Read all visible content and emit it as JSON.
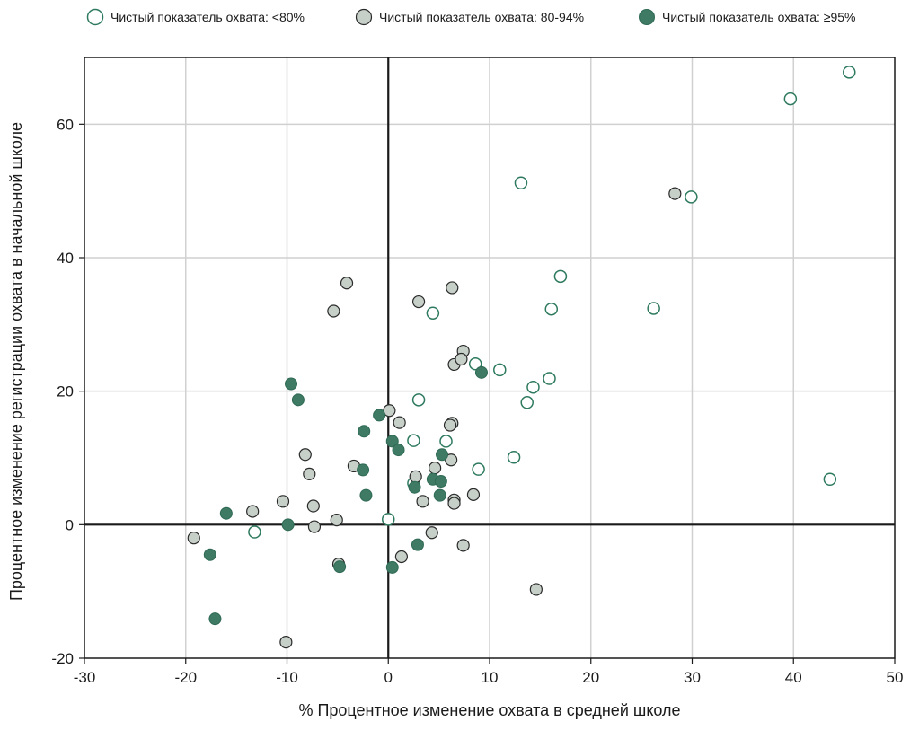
{
  "chart_data": {
    "type": "scatter",
    "title": "",
    "xlabel": "% Процентное изменение охвата в средней школе",
    "ylabel": "Процентное изменение регистрации охвата в начальной школе",
    "xlim": [
      -30,
      50
    ],
    "ylim": [
      -20,
      70
    ],
    "x_ticks": [
      -30,
      -20,
      -10,
      0,
      10,
      20,
      30,
      40,
      50
    ],
    "y_ticks": [
      -20,
      0,
      20,
      40,
      60
    ],
    "x_tick_labels": [
      "-30",
      "-20",
      "-10",
      "0",
      "10",
      "20",
      "30",
      "40",
      "50"
    ],
    "y_tick_labels": [
      "-20",
      "0",
      "20",
      "40",
      "60"
    ],
    "grid": true,
    "legend_position": "top",
    "colors": {
      "low": "#ffffff",
      "mid": "#c7cfc9",
      "high": "#3f7a64",
      "stroke_low": "#2e7a5e",
      "stroke_mid": "#2a2a2a",
      "stroke_high": "#2f6a55",
      "grid": "#d0d0d0",
      "zero_line": "#1a1a1a"
    },
    "series": [
      {
        "name": "Чистый показатель охвата: <80%",
        "marker": "open-circle",
        "points": [
          [
            45.5,
            67.8
          ],
          [
            39.7,
            63.8
          ],
          [
            13.1,
            51.2
          ],
          [
            29.9,
            49.1
          ],
          [
            17.0,
            37.2
          ],
          [
            26.2,
            32.4
          ],
          [
            16.1,
            32.3
          ],
          [
            4.4,
            31.7
          ],
          [
            11.0,
            23.2
          ],
          [
            8.6,
            24.1
          ],
          [
            15.9,
            21.9
          ],
          [
            14.3,
            20.6
          ],
          [
            13.7,
            18.3
          ],
          [
            3.0,
            18.7
          ],
          [
            2.5,
            12.6
          ],
          [
            5.7,
            12.5
          ],
          [
            12.4,
            10.1
          ],
          [
            8.9,
            8.3
          ],
          [
            43.6,
            6.8
          ],
          [
            -13.2,
            -1.1
          ],
          [
            0.0,
            0.8
          ],
          [
            2.5,
            6.2
          ]
        ]
      },
      {
        "name": "Чистый показатель охвата: 80-94%",
        "marker": "gray-circle",
        "points": [
          [
            28.3,
            49.6
          ],
          [
            -4.1,
            36.2
          ],
          [
            6.3,
            35.5
          ],
          [
            3.0,
            33.4
          ],
          [
            -5.4,
            32.0
          ],
          [
            7.4,
            26.0
          ],
          [
            6.5,
            24.0
          ],
          [
            7.2,
            24.8
          ],
          [
            0.1,
            17.1
          ],
          [
            1.1,
            15.3
          ],
          [
            6.3,
            15.2
          ],
          [
            6.1,
            14.9
          ],
          [
            -8.2,
            10.5
          ],
          [
            6.2,
            9.7
          ],
          [
            -3.4,
            8.8
          ],
          [
            4.6,
            8.5
          ],
          [
            -7.8,
            7.6
          ],
          [
            2.7,
            7.2
          ],
          [
            8.4,
            4.5
          ],
          [
            3.4,
            3.5
          ],
          [
            6.5,
            3.7
          ],
          [
            6.5,
            3.2
          ],
          [
            -10.4,
            3.5
          ],
          [
            -7.4,
            2.8
          ],
          [
            -13.4,
            2.0
          ],
          [
            -5.1,
            0.7
          ],
          [
            -7.3,
            -0.3
          ],
          [
            -19.2,
            -2.0
          ],
          [
            4.3,
            -1.2
          ],
          [
            7.4,
            -3.1
          ],
          [
            -4.9,
            -5.9
          ],
          [
            1.3,
            -4.8
          ],
          [
            14.6,
            -9.7
          ],
          [
            -10.1,
            -17.6
          ]
        ]
      },
      {
        "name": "Чистый показатель охвата: ≥95%",
        "marker": "filled-circle",
        "points": [
          [
            9.2,
            22.8
          ],
          [
            -9.6,
            21.1
          ],
          [
            -8.9,
            18.7
          ],
          [
            -0.9,
            16.4
          ],
          [
            -2.4,
            14.0
          ],
          [
            0.4,
            12.5
          ],
          [
            1.0,
            11.2
          ],
          [
            5.3,
            10.5
          ],
          [
            -2.5,
            8.2
          ],
          [
            4.4,
            6.8
          ],
          [
            5.2,
            6.5
          ],
          [
            2.6,
            5.6
          ],
          [
            -2.2,
            4.4
          ],
          [
            5.1,
            4.4
          ],
          [
            -16.0,
            1.7
          ],
          [
            -9.9,
            0.0
          ],
          [
            2.9,
            -3.0
          ],
          [
            -17.6,
            -4.5
          ],
          [
            -4.8,
            -6.3
          ],
          [
            0.4,
            -6.4
          ],
          [
            -17.1,
            -14.1
          ]
        ]
      }
    ]
  }
}
